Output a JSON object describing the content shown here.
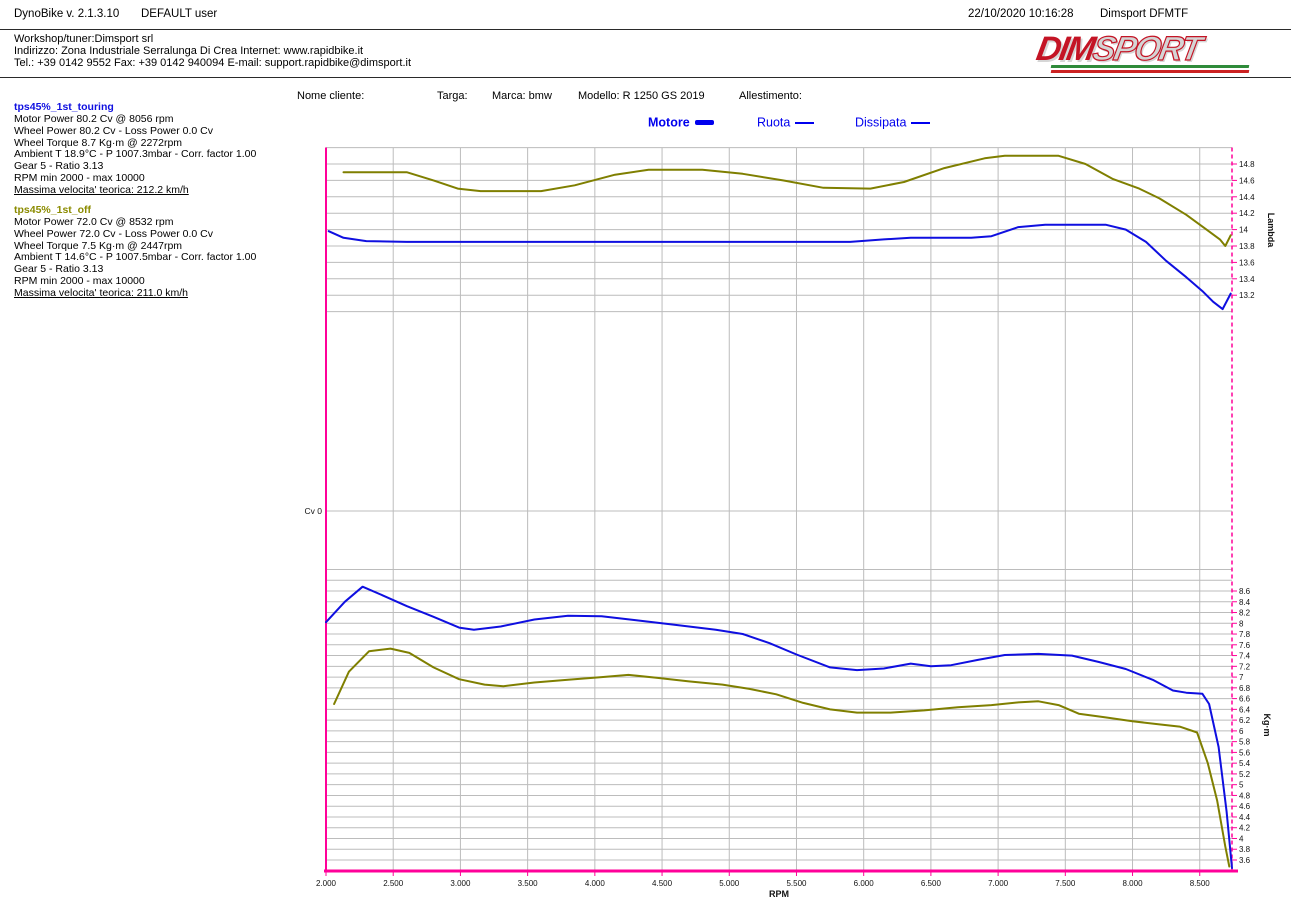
{
  "header": {
    "app_title": "DynoBike v. 2.1.3.10",
    "user": "DEFAULT user",
    "datetime": "22/10/2020 10:16:28",
    "operator": "Dimsport DFMTF",
    "workshop_line1": "Workshop/tuner:Dimsport srl",
    "workshop_line2": "Indirizzo: Zona Industriale Serralunga Di Crea Internet: www.rapidbike.it",
    "workshop_line3": "Tel.: +39 0142 9552 Fax: +39 0142 940094 E-mail: support.rapidbike@dimsport.it",
    "logo_dim": "DIM",
    "logo_sport": "SPORT"
  },
  "vehicle": {
    "nome_cliente": "Nome cliente:",
    "targa": "Targa:",
    "marca": "Marca: bmw",
    "modello": "Modello: R 1250 GS 2019",
    "allestimento": "Allestimento:"
  },
  "legend": {
    "items": [
      {
        "label": "Motore"
      },
      {
        "label": "Ruota"
      },
      {
        "label": "Dissipata"
      }
    ]
  },
  "runs": [
    {
      "title": "tps45%_1st_touring",
      "color": "#0f0fe0",
      "lines": [
        "Motor Power 80.2 Cv  @ 8056 rpm",
        "Wheel Power 80.2 Cv  - Loss Power 0.0 Cv",
        "Wheel Torque 8.7 Kg·m  @ 2272rpm",
        "Ambient T 18.9°C - P 1007.3mbar - Corr. factor 1.00",
        "Gear 5 - Ratio 3.13",
        "RPM min 2000 - max 10000"
      ],
      "max_speed": "Massima velocita' teorica: 212.2 km/h"
    },
    {
      "title": "tps45%_1st_off",
      "color": "#8b8b00",
      "lines": [
        "Motor Power 72.0 Cv  @ 8532 rpm",
        "Wheel Power 72.0 Cv  - Loss Power 0.0 Cv",
        "Wheel Torque 7.5 Kg·m  @ 2447rpm",
        "Ambient T 14.6°C - P 1007.5mbar - Corr. factor 1.00",
        "Gear 5 - Ratio 3.13",
        "RPM min 2000 - max 10000"
      ],
      "max_speed": "Massima velocita' teorica: 211.0 km/h"
    }
  ],
  "colors": {
    "touring": "#0f0fe0",
    "off": "#7f7f00",
    "axis_magenta": "#ff0099",
    "grid": "#bcbcbc",
    "legend_text": "#0000ee",
    "logo_red": "#c41425",
    "logo_silver": "#d4d4d4",
    "stripe_green": "#2e8b3a",
    "stripe_red": "#cc2222"
  },
  "chart_data": {
    "type": "line",
    "xlabel": "RPM",
    "x_range": [
      2000,
      8740
    ],
    "x_ticks": [
      2000,
      2500,
      3000,
      3500,
      4000,
      4500,
      5000,
      5500,
      6000,
      6500,
      7000,
      7500,
      8000,
      8500
    ],
    "x_tick_labels": [
      "2.000",
      "2.500",
      "3.000",
      "3.500",
      "4.000",
      "4.500",
      "5.000",
      "5.500",
      "6.000",
      "6.500",
      "7.000",
      "7.500",
      "8.000",
      "8.500"
    ],
    "axes": {
      "lambda": {
        "label": "Lambda",
        "ticks": [
          14.8,
          14.6,
          14.4,
          14.2,
          14,
          13.8,
          13.6,
          13.4,
          13.2
        ],
        "tick_labels": [
          "14.8",
          "14.6",
          "14.4",
          "14.2",
          "14",
          "13.8",
          "13.6",
          "13.4",
          "13.2"
        ],
        "grid": [
          15,
          14.8,
          14.6,
          14.4,
          14.2,
          14,
          13.8,
          13.6,
          13.4,
          13.2,
          13
        ],
        "range": [
          13.0,
          15.0
        ]
      },
      "torque": {
        "label": "Kg·m",
        "ticks": [
          8.6,
          8.4,
          8.2,
          8,
          7.8,
          7.6,
          7.4,
          7.2,
          7,
          6.8,
          6.6,
          6.4,
          6.2,
          6,
          5.8,
          5.6,
          5.4,
          5.2,
          5,
          4.8,
          4.6,
          4.4,
          4.2,
          4,
          3.8,
          3.6
        ],
        "tick_labels": [
          "8.6",
          "8.4",
          "8.2",
          "8",
          "7.8",
          "7.6",
          "7.4",
          "7.2",
          "7",
          "6.8",
          "6.6",
          "6.4",
          "6.2",
          "6",
          "5.8",
          "5.6",
          "5.4",
          "5.2",
          "5",
          "4.8",
          "4.6",
          "4.4",
          "4.2",
          "4",
          "3.8",
          "3.6"
        ],
        "grid": [
          9,
          8.8,
          8.6,
          8.4,
          8.2,
          8,
          7.8,
          7.6,
          7.4,
          7.2,
          7,
          6.8,
          6.6,
          6.4,
          6.2,
          6,
          5.8,
          5.6,
          5.4,
          5.2,
          5,
          4.8,
          4.6,
          4.4,
          4.2,
          4,
          3.8,
          3.6
        ],
        "range": [
          3.4,
          9.0
        ]
      },
      "power": {
        "label": "Cv",
        "zero_label": "Cv 0"
      }
    },
    "series": [
      {
        "name": "lambda-off",
        "axis": "lambda",
        "color": "#7f7f00",
        "points": [
          [
            2130,
            14.7
          ],
          [
            2600,
            14.7
          ],
          [
            2800,
            14.6
          ],
          [
            2980,
            14.5
          ],
          [
            3150,
            14.47
          ],
          [
            3600,
            14.47
          ],
          [
            3850,
            14.54
          ],
          [
            4150,
            14.67
          ],
          [
            4400,
            14.73
          ],
          [
            4800,
            14.73
          ],
          [
            5100,
            14.68
          ],
          [
            5400,
            14.6
          ],
          [
            5700,
            14.51
          ],
          [
            6050,
            14.5
          ],
          [
            6300,
            14.58
          ],
          [
            6600,
            14.75
          ],
          [
            6900,
            14.87
          ],
          [
            7050,
            14.9
          ],
          [
            7450,
            14.9
          ],
          [
            7650,
            14.8
          ],
          [
            7850,
            14.62
          ],
          [
            8050,
            14.5
          ],
          [
            8200,
            14.38
          ],
          [
            8400,
            14.18
          ],
          [
            8550,
            14.0
          ],
          [
            8650,
            13.88
          ],
          [
            8690,
            13.8
          ],
          [
            8730,
            13.93
          ]
        ]
      },
      {
        "name": "lambda-touring",
        "axis": "lambda",
        "color": "#0f0fe0",
        "points": [
          [
            2020,
            13.98
          ],
          [
            2130,
            13.9
          ],
          [
            2300,
            13.86
          ],
          [
            2600,
            13.85
          ],
          [
            3200,
            13.85
          ],
          [
            4000,
            13.85
          ],
          [
            4800,
            13.85
          ],
          [
            5500,
            13.85
          ],
          [
            5900,
            13.85
          ],
          [
            6150,
            13.88
          ],
          [
            6350,
            13.9
          ],
          [
            6800,
            13.9
          ],
          [
            6950,
            13.92
          ],
          [
            7150,
            14.03
          ],
          [
            7350,
            14.06
          ],
          [
            7800,
            14.06
          ],
          [
            7950,
            14.0
          ],
          [
            8100,
            13.85
          ],
          [
            8250,
            13.62
          ],
          [
            8400,
            13.42
          ],
          [
            8520,
            13.25
          ],
          [
            8600,
            13.12
          ],
          [
            8670,
            13.03
          ],
          [
            8730,
            13.22
          ]
        ]
      },
      {
        "name": "torque-off",
        "axis": "torque",
        "color": "#7f7f00",
        "points": [
          [
            2060,
            6.5
          ],
          [
            2170,
            7.1
          ],
          [
            2320,
            7.48
          ],
          [
            2480,
            7.53
          ],
          [
            2620,
            7.45
          ],
          [
            2800,
            7.18
          ],
          [
            2990,
            6.96
          ],
          [
            3180,
            6.86
          ],
          [
            3320,
            6.83
          ],
          [
            3550,
            6.9
          ],
          [
            3800,
            6.95
          ],
          [
            4050,
            7.0
          ],
          [
            4250,
            7.04
          ],
          [
            4450,
            6.99
          ],
          [
            4700,
            6.92
          ],
          [
            4950,
            6.86
          ],
          [
            5150,
            6.78
          ],
          [
            5350,
            6.68
          ],
          [
            5550,
            6.52
          ],
          [
            5750,
            6.4
          ],
          [
            5950,
            6.34
          ],
          [
            6200,
            6.34
          ],
          [
            6450,
            6.38
          ],
          [
            6700,
            6.44
          ],
          [
            6950,
            6.48
          ],
          [
            7150,
            6.53
          ],
          [
            7300,
            6.55
          ],
          [
            7450,
            6.48
          ],
          [
            7600,
            6.32
          ],
          [
            7800,
            6.25
          ],
          [
            8000,
            6.18
          ],
          [
            8200,
            6.12
          ],
          [
            8350,
            6.08
          ],
          [
            8480,
            5.97
          ],
          [
            8560,
            5.4
          ],
          [
            8630,
            4.7
          ],
          [
            8690,
            3.85
          ],
          [
            8720,
            3.48
          ]
        ]
      },
      {
        "name": "torque-touring",
        "axis": "torque",
        "color": "#0f0fe0",
        "points": [
          [
            2000,
            8.02
          ],
          [
            2140,
            8.4
          ],
          [
            2272,
            8.68
          ],
          [
            2420,
            8.52
          ],
          [
            2600,
            8.32
          ],
          [
            2800,
            8.12
          ],
          [
            2990,
            7.92
          ],
          [
            3100,
            7.88
          ],
          [
            3300,
            7.94
          ],
          [
            3550,
            8.07
          ],
          [
            3800,
            8.14
          ],
          [
            4050,
            8.13
          ],
          [
            4300,
            8.06
          ],
          [
            4600,
            7.97
          ],
          [
            4900,
            7.88
          ],
          [
            5100,
            7.8
          ],
          [
            5300,
            7.63
          ],
          [
            5500,
            7.42
          ],
          [
            5750,
            7.18
          ],
          [
            5950,
            7.13
          ],
          [
            6150,
            7.16
          ],
          [
            6350,
            7.25
          ],
          [
            6500,
            7.2
          ],
          [
            6650,
            7.22
          ],
          [
            6850,
            7.32
          ],
          [
            7050,
            7.41
          ],
          [
            7300,
            7.43
          ],
          [
            7550,
            7.4
          ],
          [
            7750,
            7.28
          ],
          [
            7950,
            7.15
          ],
          [
            8150,
            6.95
          ],
          [
            8300,
            6.75
          ],
          [
            8400,
            6.71
          ],
          [
            8520,
            6.69
          ],
          [
            8570,
            6.5
          ],
          [
            8640,
            5.7
          ],
          [
            8700,
            4.5
          ],
          [
            8740,
            3.45
          ]
        ]
      }
    ]
  }
}
